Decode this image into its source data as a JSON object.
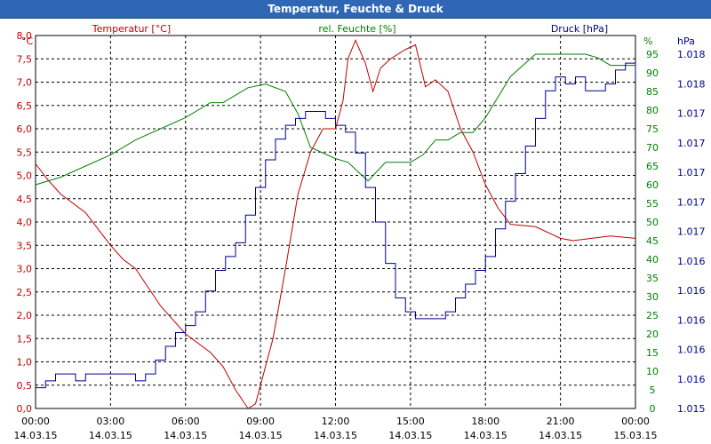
{
  "window": {
    "title": "Temperatur, Feuchte & Druck"
  },
  "chart_data": {
    "type": "line",
    "title": "Temperatur, Feuchte & Druck",
    "x_range": [
      0,
      24
    ],
    "x_ticks": [
      {
        "x": 0,
        "time": "00:00",
        "date": "14.03.15"
      },
      {
        "x": 3,
        "time": "03:00",
        "date": "14.03.15"
      },
      {
        "x": 6,
        "time": "06:00",
        "date": "14.03.15"
      },
      {
        "x": 9,
        "time": "09:00",
        "date": "14.03.15"
      },
      {
        "x": 12,
        "time": "12:00",
        "date": "14.03.15"
      },
      {
        "x": 15,
        "time": "15:00",
        "date": "14.03.15"
      },
      {
        "x": 18,
        "time": "18:00",
        "date": "14.03.15"
      },
      {
        "x": 21,
        "time": "21:00",
        "date": "14.03.15"
      },
      {
        "x": 24,
        "time": "00:00",
        "date": "15.03.15"
      }
    ],
    "grid": true,
    "colors": {
      "temperature": "#c00000",
      "humidity": "#008000",
      "pressure": "#00008b",
      "grid": "#000000"
    },
    "axes": {
      "left": {
        "label": "Temperatur [°C]",
        "unit": "°C",
        "range": [
          0,
          8
        ],
        "ticks": [
          "0,0",
          "0,5",
          "1,0",
          "1,5",
          "2,0",
          "2,5",
          "3,0",
          "3,5",
          "4,0",
          "4,5",
          "5,0",
          "5,5",
          "6,0",
          "6,5",
          "7,0",
          "7,5",
          "8,0"
        ]
      },
      "right1": {
        "label": "rel. Feuchte [%]",
        "unit": "%",
        "range": [
          0,
          100
        ],
        "ticks": [
          "0",
          "5",
          "10",
          "15",
          "20",
          "25",
          "30",
          "35",
          "40",
          "45",
          "50",
          "55",
          "60",
          "65",
          "70",
          "75",
          "80",
          "85",
          "90",
          "95"
        ]
      },
      "right2": {
        "label": "Druck [hPa]",
        "unit": "hPa",
        "range": [
          1015.5,
          1018.2
        ],
        "ticks": [
          "1.015",
          "1.016",
          "1.016",
          "1.016",
          "1.016",
          "1.016",
          "1.017",
          "1.017",
          "1.017",
          "1.017",
          "1.017",
          "1.018",
          "1.018"
        ]
      }
    },
    "series": [
      {
        "name": "Temperatur",
        "axis": "left",
        "x": [
          0,
          0.5,
          1,
          2,
          3,
          3.5,
          4,
          5,
          6,
          7,
          7.5,
          8,
          8.5,
          8.8,
          9.5,
          10,
          10.5,
          11,
          11.5,
          12,
          12.3,
          12.5,
          12.8,
          13.2,
          13.5,
          13.8,
          14.2,
          14.8,
          15.2,
          15.6,
          16,
          16.5,
          17,
          17.5,
          18,
          18.5,
          19,
          20,
          21,
          21.5,
          23,
          24
        ],
        "values": [
          5.25,
          4.9,
          4.6,
          4.2,
          3.5,
          3.2,
          3.0,
          2.2,
          1.6,
          1.2,
          0.9,
          0.4,
          0.0,
          0.1,
          1.5,
          3.0,
          4.6,
          5.5,
          6.0,
          6.0,
          6.6,
          7.5,
          7.9,
          7.4,
          6.8,
          7.3,
          7.5,
          7.7,
          7.8,
          6.9,
          7.05,
          6.8,
          6.0,
          5.5,
          4.8,
          4.3,
          3.95,
          3.9,
          3.65,
          3.6,
          3.7,
          3.65
        ]
      },
      {
        "name": "rel. Feuchte",
        "axis": "right1",
        "x": [
          0,
          1,
          2,
          3,
          4,
          5,
          6,
          7,
          7.5,
          8,
          8.5,
          9.2,
          10,
          10.5,
          11,
          12,
          12.5,
          13.3,
          14,
          15,
          15.5,
          16,
          16.5,
          17,
          17.5,
          18,
          19,
          20,
          21,
          22,
          22.5,
          23,
          24
        ],
        "values": [
          60,
          62,
          65,
          68,
          72,
          75,
          78,
          82,
          82,
          84,
          86,
          87,
          85,
          79,
          70,
          67,
          66,
          61,
          66,
          66,
          68,
          72,
          72,
          74,
          74,
          78,
          89,
          95,
          95,
          95,
          94,
          92,
          92
        ]
      },
      {
        "name": "Druck",
        "axis": "right2",
        "x": [
          0,
          0.4,
          0.8,
          1.2,
          1.6,
          2,
          2.4,
          2.8,
          3.2,
          3.6,
          4,
          4.4,
          4.8,
          5.2,
          5.6,
          6,
          6.4,
          6.8,
          7.2,
          7.6,
          8,
          8.4,
          8.8,
          9.2,
          9.6,
          10,
          10.4,
          10.8,
          11.2,
          11.6,
          12,
          12.4,
          12.8,
          13.2,
          13.6,
          14,
          14.4,
          14.8,
          15.2,
          15.6,
          16,
          16.4,
          16.8,
          17.2,
          17.6,
          18,
          18.4,
          18.8,
          19.2,
          19.6,
          20,
          20.4,
          20.8,
          21.2,
          21.6,
          22,
          22.4,
          22.8,
          23.2,
          23.6,
          24
        ],
        "values": [
          1015.65,
          1015.7,
          1015.75,
          1015.75,
          1015.7,
          1015.75,
          1015.75,
          1015.75,
          1015.75,
          1015.75,
          1015.7,
          1015.75,
          1015.85,
          1015.95,
          1016.05,
          1016.1,
          1016.2,
          1016.35,
          1016.5,
          1016.6,
          1016.7,
          1016.9,
          1017.1,
          1017.3,
          1017.45,
          1017.55,
          1017.6,
          1017.65,
          1017.65,
          1017.6,
          1017.55,
          1017.5,
          1017.35,
          1017.1,
          1016.85,
          1016.55,
          1016.3,
          1016.2,
          1016.15,
          1016.15,
          1016.15,
          1016.2,
          1016.3,
          1016.4,
          1016.5,
          1016.6,
          1016.8,
          1017.0,
          1017.2,
          1017.4,
          1017.6,
          1017.8,
          1017.9,
          1017.85,
          1017.9,
          1017.8,
          1017.8,
          1017.85,
          1017.95,
          1018.0,
          1017.9
        ]
      }
    ]
  }
}
